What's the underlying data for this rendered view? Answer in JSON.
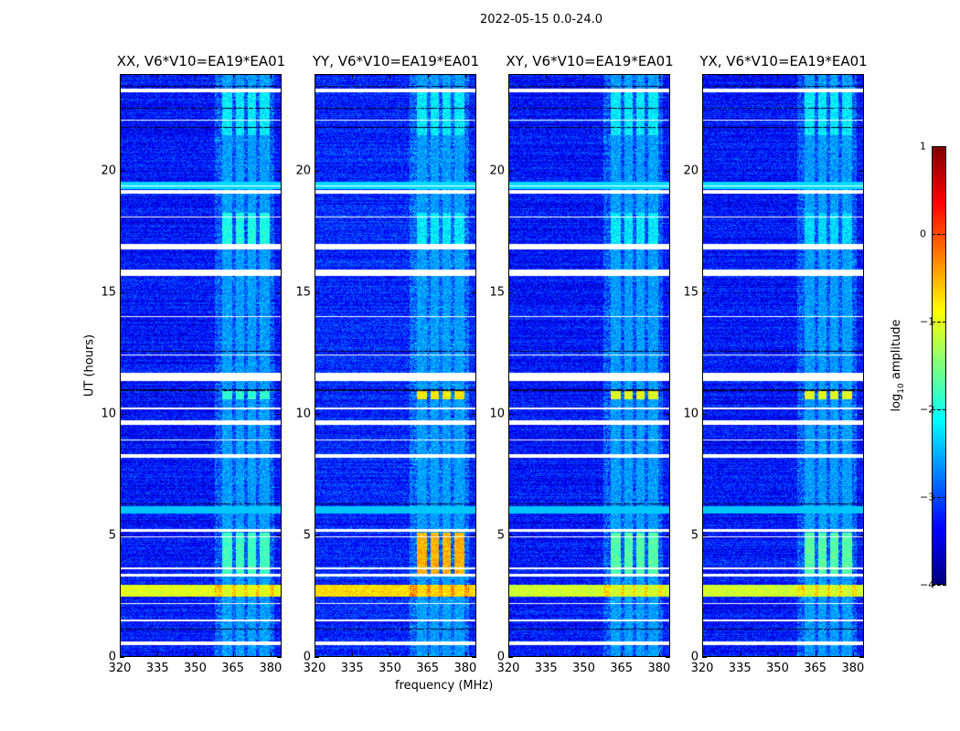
{
  "figure_title": "2022-05-15 0.0-24.0",
  "chart_data": {
    "type": "heatmap",
    "title": "2022-05-15 0.0-24.0",
    "xlabel": "frequency (MHz)",
    "ylabel": "UT (hours)",
    "xlim": [
      320,
      384.4
    ],
    "ylim": [
      0,
      24
    ],
    "xticks": [
      320,
      335,
      350,
      365,
      380
    ],
    "yticks": [
      0,
      5,
      10,
      15,
      20
    ],
    "panels": [
      {
        "title": "XX, V6*V10=EA19*EA01",
        "base": -3.3,
        "burst_3_5": -1.8,
        "burst_10_8": -1.9,
        "rfi_17": -2.0,
        "wide_2_7": -1.0
      },
      {
        "title": "YY, V6*V10=EA19*EA01",
        "base": -3.2,
        "burst_3_5": -0.5,
        "burst_10_8": -0.8,
        "rfi_17": -2.2,
        "wide_2_7": -0.7
      },
      {
        "title": "XY, V6*V10=EA19*EA01",
        "base": -3.3,
        "burst_3_5": -1.7,
        "burst_10_8": -1.0,
        "rfi_17": -2.2,
        "wide_2_7": -1.1
      },
      {
        "title": "YX, V6*V10=EA19*EA01",
        "base": -3.3,
        "burst_3_5": -1.7,
        "burst_10_8": -1.0,
        "rfi_17": -2.3,
        "wide_2_7": -1.1
      }
    ],
    "rfi_channels_mhz": [
      [
        360.7,
        365.0
      ],
      [
        366.2,
        369.8
      ],
      [
        371.0,
        374.5
      ],
      [
        376.0,
        380.0
      ]
    ],
    "flagged_hours": [
      [
        0.45,
        0.6
      ],
      [
        1.45,
        1.5
      ],
      [
        2.15,
        2.2
      ],
      [
        3.3,
        3.38
      ],
      [
        3.6,
        3.65
      ],
      [
        4.9,
        4.95
      ],
      [
        5.15,
        5.25
      ],
      [
        8.2,
        8.35
      ],
      [
        8.9,
        8.95
      ],
      [
        9.55,
        9.75
      ],
      [
        10.2,
        10.25
      ],
      [
        11.35,
        11.7
      ],
      [
        12.4,
        12.45
      ],
      [
        14.0,
        14.05
      ],
      [
        15.7,
        15.95
      ],
      [
        16.8,
        17.0
      ],
      [
        18.1,
        18.15
      ],
      [
        19.1,
        19.25
      ],
      [
        19.4,
        19.45
      ],
      [
        22.1,
        22.15
      ],
      [
        23.3,
        23.45
      ]
    ],
    "dark_hours": [
      [
        1.1,
        1.15
      ],
      [
        6.25,
        6.3
      ],
      [
        10.95,
        11.0
      ],
      [
        12.55,
        12.6
      ],
      [
        21.8,
        21.85
      ],
      [
        22.6,
        22.65
      ],
      [
        23.5,
        23.55
      ]
    ],
    "colorbar": {
      "label_main": "log",
      "label_sub": "10",
      "label_rest": " amplitude",
      "min": -4,
      "max": 1,
      "ticks": [
        1,
        0,
        -1,
        -2,
        -3,
        -4
      ],
      "tick_labels": [
        "1",
        "0",
        "−1",
        "−2",
        "−3",
        "−4"
      ],
      "colormap": "jet"
    }
  }
}
